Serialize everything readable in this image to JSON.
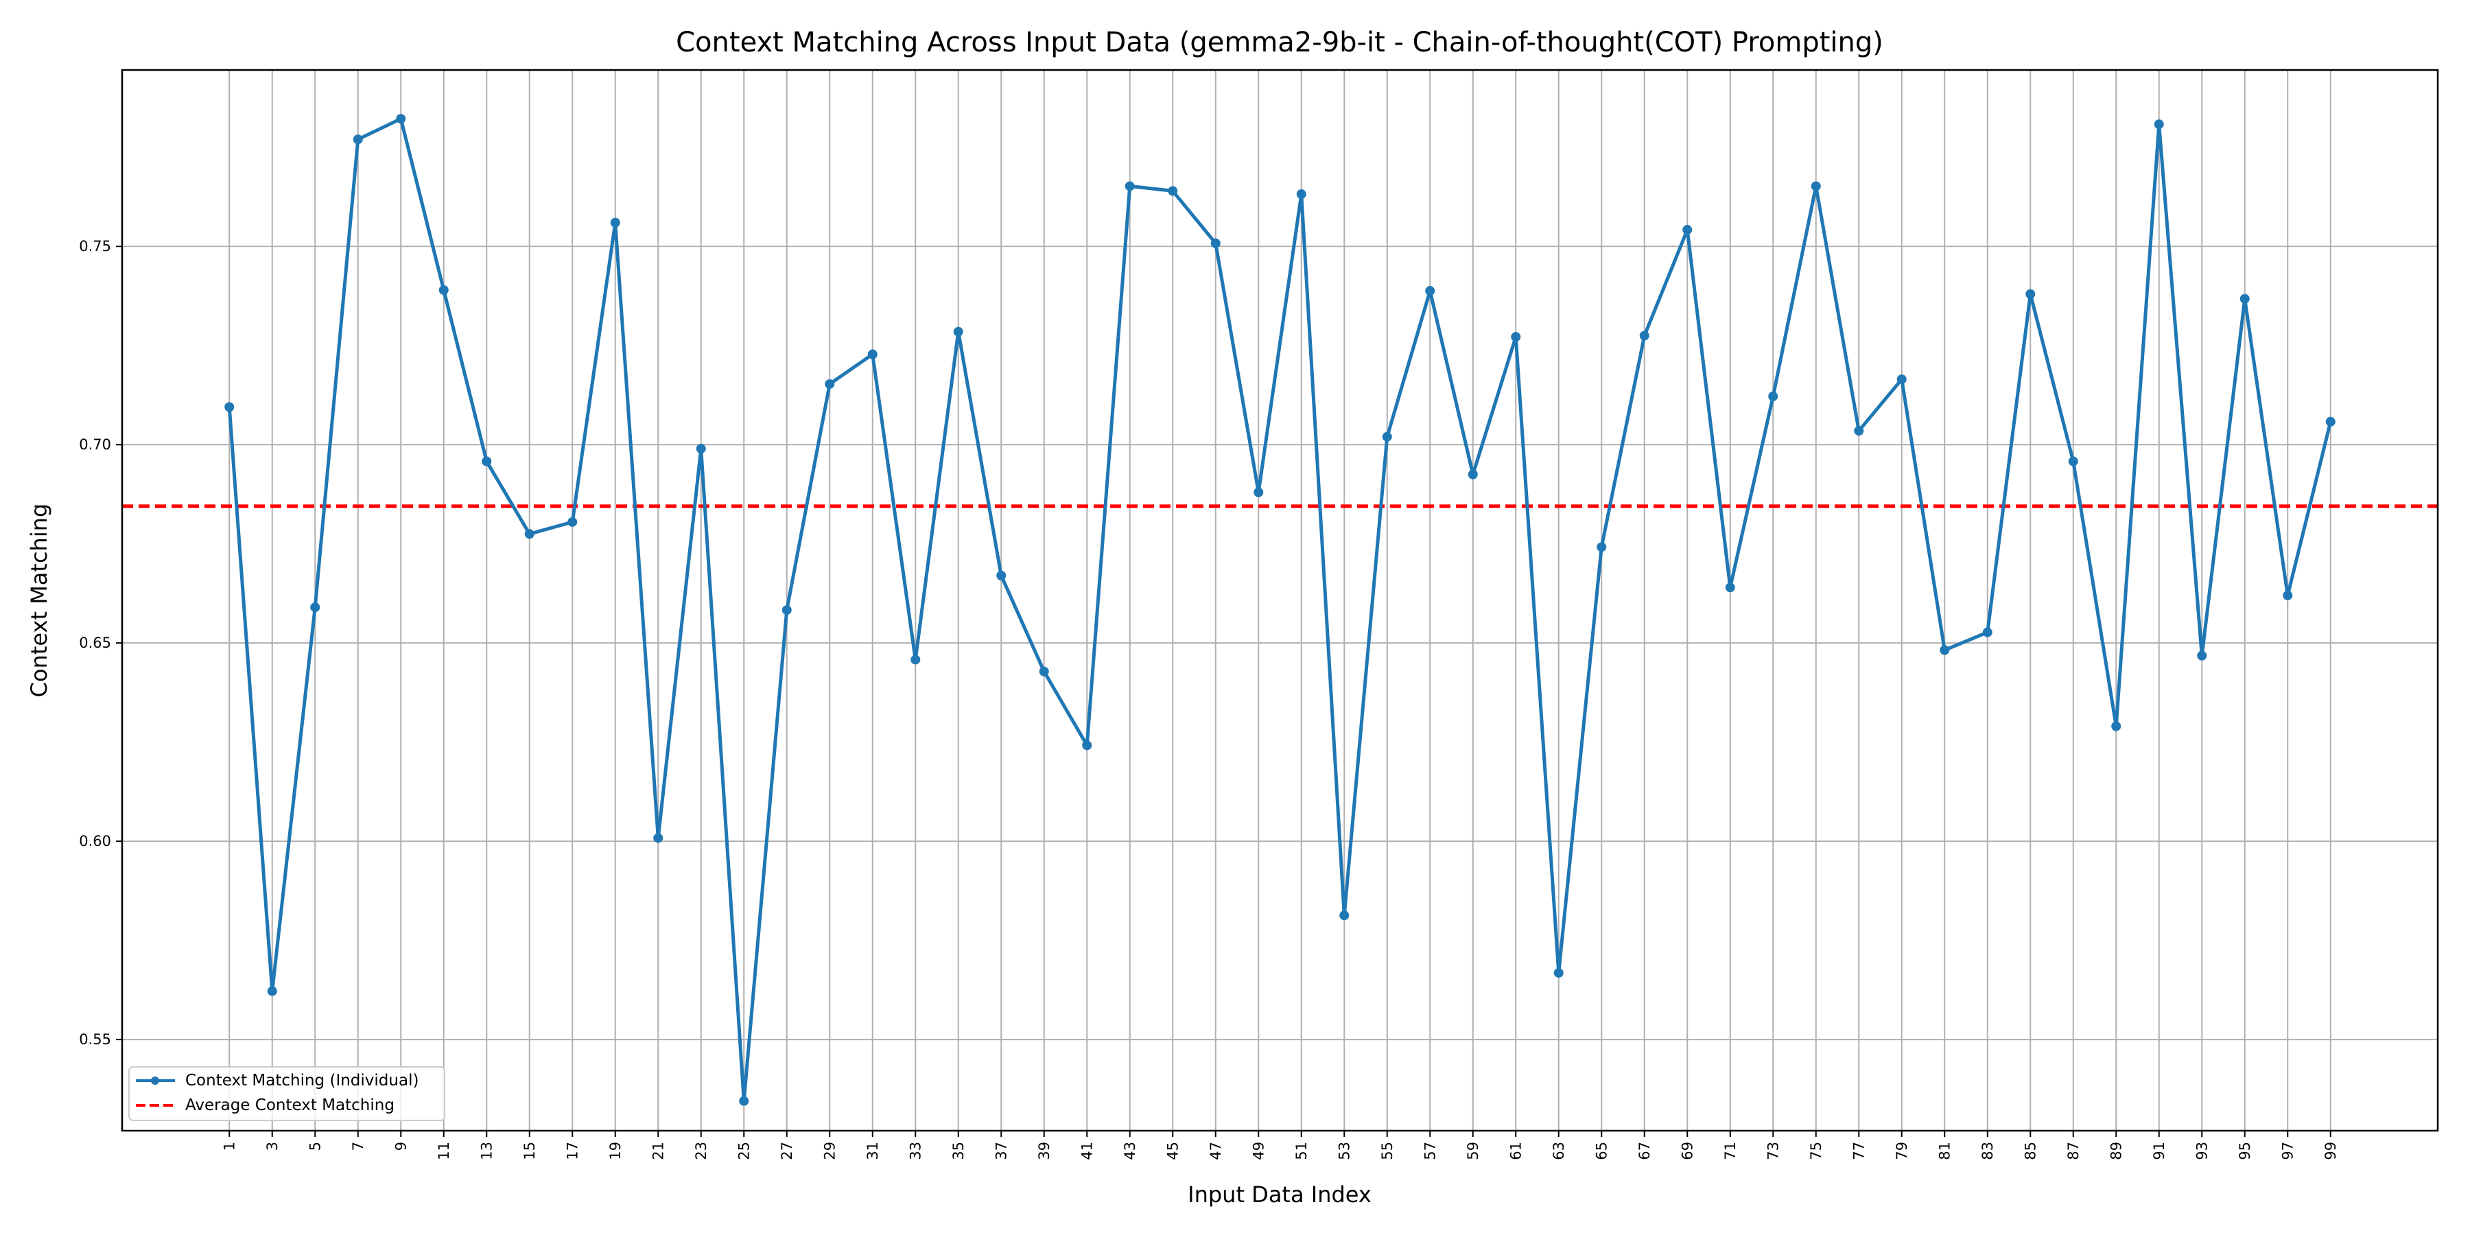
{
  "chart_data": {
    "type": "line",
    "title": "Context Matching Across Input Data (gemma2-9b-it - Chain-of-thought(COT) Prompting)",
    "xlabel": "Input Data Index",
    "ylabel": "Context Matching",
    "x": [
      1,
      3,
      5,
      7,
      9,
      11,
      13,
      15,
      17,
      19,
      21,
      23,
      25,
      27,
      29,
      31,
      33,
      35,
      37,
      39,
      41,
      43,
      45,
      47,
      49,
      51,
      53,
      55,
      57,
      59,
      61,
      63,
      65,
      67,
      69,
      71,
      73,
      75,
      77,
      79,
      81,
      83,
      85,
      87,
      89,
      91,
      93,
      95,
      97,
      99
    ],
    "xlim": [
      -4.0,
      104.0
    ],
    "ylim": [
      0.527,
      0.7945
    ],
    "yticks": [
      0.55,
      0.6,
      0.65,
      0.7,
      0.75
    ],
    "ytick_labels": [
      "0.55",
      "0.60",
      "0.65",
      "0.70",
      "0.75"
    ],
    "grid": true,
    "legend_position": "lower-left",
    "series": [
      {
        "name": "Context Matching (Individual)",
        "color": "#1f77b4",
        "marker": "circle",
        "values": [
          0.7095,
          0.5622,
          0.659,
          0.777,
          0.7822,
          0.739,
          0.6958,
          0.6775,
          0.6805,
          0.756,
          0.6008,
          0.699,
          0.5345,
          0.6583,
          0.7153,
          0.7228,
          0.6458,
          0.7285,
          0.667,
          0.6428,
          0.6242,
          0.7652,
          0.764,
          0.7508,
          0.688,
          0.7632,
          0.5813,
          0.702,
          0.7388,
          0.6925,
          0.7272,
          0.5668,
          0.6742,
          0.7275,
          0.7542,
          0.664,
          0.7122,
          0.7652,
          0.7035,
          0.7165,
          0.6482,
          0.6527,
          0.738,
          0.6958,
          0.629,
          0.7808,
          0.6468,
          0.7368,
          0.662,
          0.7058
        ]
      },
      {
        "name": "Average Context Matching",
        "color": "#ff0000",
        "style": "dashed",
        "value": 0.6845
      }
    ]
  }
}
